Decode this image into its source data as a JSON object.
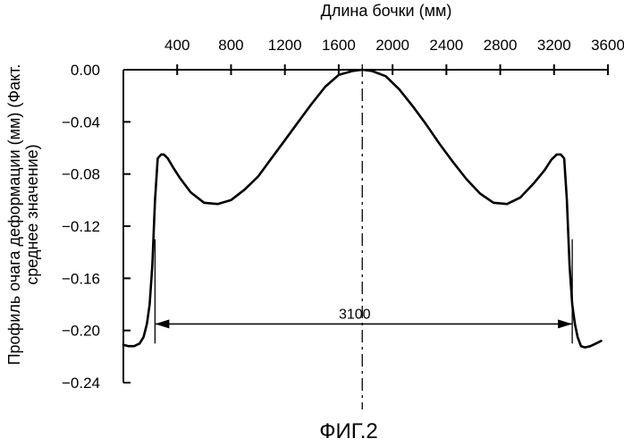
{
  "chart_data": {
    "type": "line",
    "title": "",
    "xlabel": "Длина бочки (мм)",
    "ylabel_line1": "Профиль очага деформации (мм) (Факт.",
    "ylabel_line2": "среднее значение)",
    "figure_caption": "ФИГ.2",
    "x_axis_position": "top",
    "xlim": [
      0,
      3600
    ],
    "ylim": [
      -0.24,
      0.0
    ],
    "x_ticks": [
      400,
      800,
      1200,
      1600,
      2000,
      2400,
      2800,
      3200,
      3600
    ],
    "y_ticks": [
      0.0,
      -0.04,
      -0.08,
      -0.12,
      -0.16,
      -0.2,
      -0.24
    ],
    "y_tick_labels": [
      "0.00",
      "−0.04",
      "−0.08",
      "−0.12",
      "−0.16",
      "−0.20",
      "−0.24"
    ],
    "grid": false,
    "centerline_x": 1775,
    "dimension": {
      "label": "3100",
      "x_start": 235,
      "x_end": 3335,
      "y": -0.195
    },
    "series": [
      {
        "x": [
          0,
          40,
          80,
          120,
          150,
          175,
          195,
          215,
          235,
          255,
          280,
          300,
          330,
          370,
          420,
          500,
          600,
          700,
          800,
          900,
          1000,
          1100,
          1200,
          1300,
          1400,
          1500,
          1600,
          1700,
          1775,
          1850,
          1950,
          2050,
          2150,
          2250,
          2350,
          2450,
          2550,
          2650,
          2750,
          2850,
          2950,
          3050,
          3130,
          3180,
          3220,
          3250,
          3275,
          3295,
          3315,
          3335,
          3355,
          3375,
          3400,
          3430,
          3470,
          3510,
          3550
        ],
        "values": [
          -0.211,
          -0.212,
          -0.212,
          -0.21,
          -0.205,
          -0.195,
          -0.18,
          -0.15,
          -0.1,
          -0.068,
          -0.065,
          -0.065,
          -0.068,
          -0.075,
          -0.083,
          -0.094,
          -0.102,
          -0.103,
          -0.1,
          -0.092,
          -0.082,
          -0.068,
          -0.054,
          -0.04,
          -0.026,
          -0.013,
          -0.004,
          -0.001,
          0.0,
          -0.001,
          -0.005,
          -0.015,
          -0.028,
          -0.042,
          -0.057,
          -0.071,
          -0.084,
          -0.095,
          -0.102,
          -0.103,
          -0.098,
          -0.087,
          -0.077,
          -0.069,
          -0.065,
          -0.065,
          -0.068,
          -0.1,
          -0.15,
          -0.18,
          -0.195,
          -0.205,
          -0.212,
          -0.213,
          -0.212,
          -0.21,
          -0.208
        ]
      }
    ]
  }
}
